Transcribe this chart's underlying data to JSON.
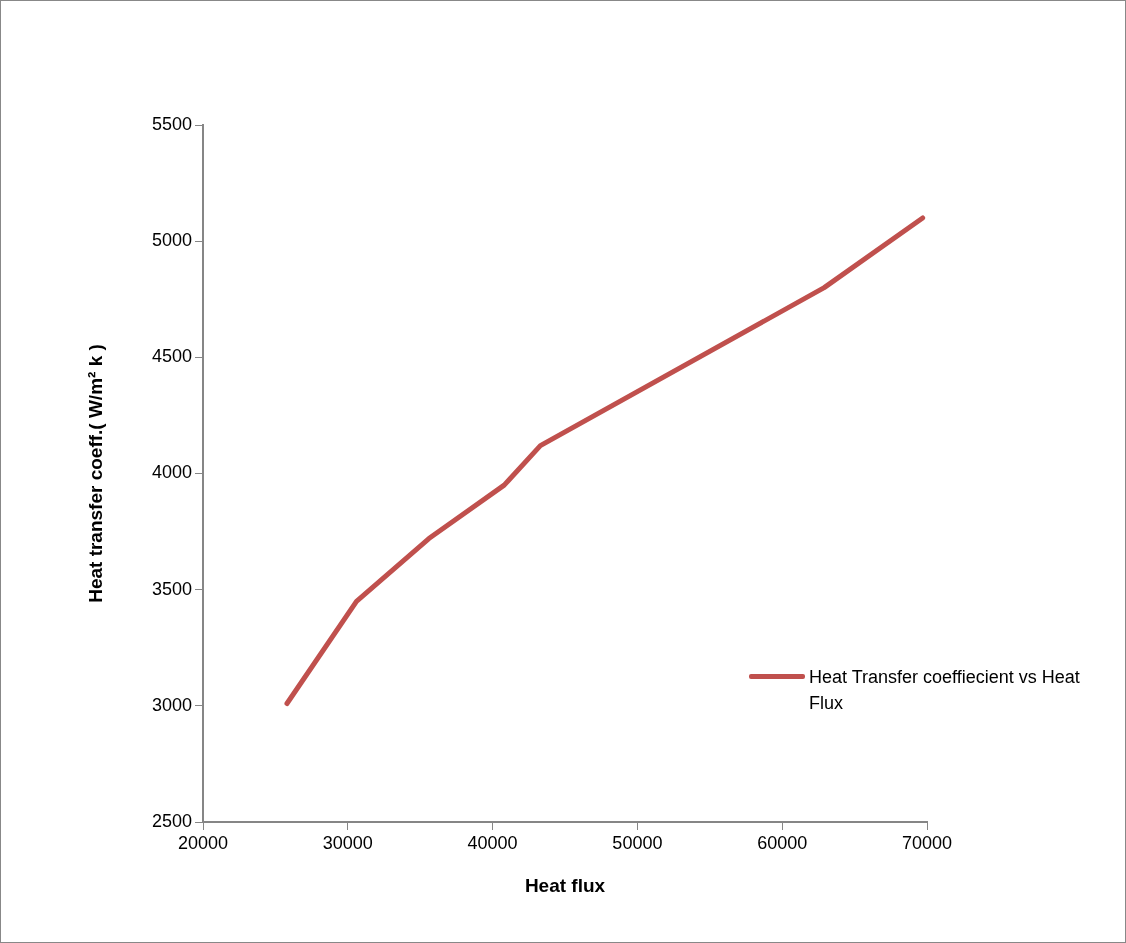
{
  "chart_data": {
    "type": "line",
    "xlabel": "Heat flux",
    "ylabel": "Heat transfer coeff.( W/m² k )",
    "x": [
      25800,
      30600,
      35600,
      40800,
      43300,
      62900,
      69700
    ],
    "series": [
      {
        "name": "Heat Transfer coeffiecient vs Heat Flux",
        "color": "#c0504d",
        "values": [
          3010,
          3450,
          3720,
          3950,
          4120,
          4800,
          5100
        ]
      }
    ],
    "xlim": [
      20000,
      70000
    ],
    "xticks": [
      20000,
      30000,
      40000,
      50000,
      60000,
      70000
    ],
    "ylim": [
      2500,
      5500
    ],
    "yticks": [
      2500,
      3000,
      3500,
      4000,
      4500,
      5000,
      5500
    ],
    "grid": false,
    "legend": "right",
    "marker": "none",
    "line_style": "solid"
  }
}
